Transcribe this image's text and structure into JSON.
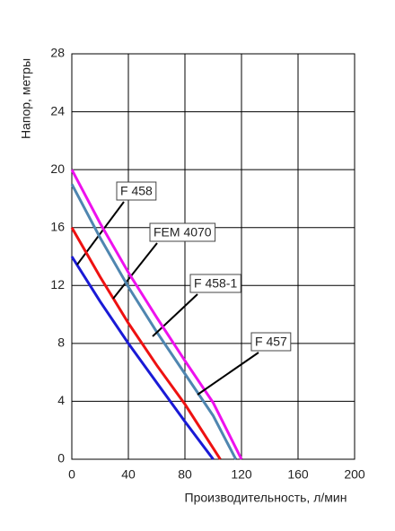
{
  "chart_data": {
    "type": "line",
    "xlabel": "Производительность, л/мин",
    "ylabel": "Напор, метры",
    "xlim": [
      0,
      200
    ],
    "xticks": [
      0,
      40,
      80,
      120,
      160,
      200
    ],
    "ylim": [
      0,
      28
    ],
    "yticks": [
      0,
      4,
      8,
      12,
      16,
      20,
      24,
      28
    ],
    "grid": true,
    "series": [
      {
        "name": "F 458",
        "color": "#1a1ad6",
        "x": [
          0,
          20,
          40,
          60,
          80,
          100
        ],
        "values": [
          14,
          10.9,
          8,
          5.3,
          2.6,
          0
        ]
      },
      {
        "name": "FEM 4070",
        "color": "#ee1111",
        "x": [
          0,
          20,
          40,
          60,
          80,
          105
        ],
        "values": [
          16,
          12.6,
          9.4,
          6.5,
          3.8,
          0
        ]
      },
      {
        "name": "F 458-1",
        "color": "#4f86b0",
        "x": [
          0,
          20,
          40,
          60,
          80,
          100,
          116
        ],
        "values": [
          19,
          15.3,
          11.9,
          8.8,
          5.9,
          3,
          0
        ]
      },
      {
        "name": "F 457",
        "color": "#ee11ee",
        "x": [
          0,
          20,
          40,
          60,
          80,
          100,
          120
        ],
        "values": [
          20,
          16.3,
          12.9,
          9.8,
          6.8,
          3.9,
          0
        ]
      }
    ]
  }
}
